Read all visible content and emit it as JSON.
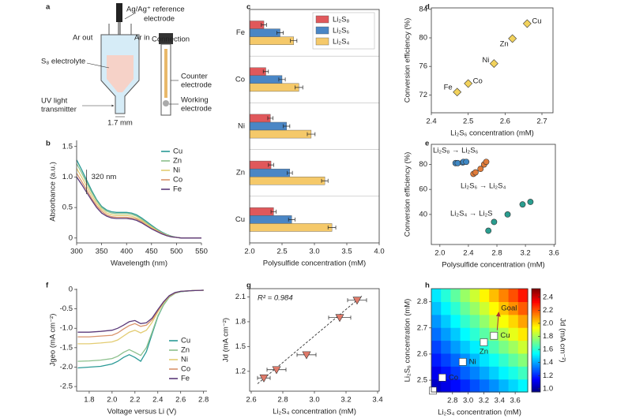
{
  "chart_data": [
    {
      "type": "diagram",
      "label": "a",
      "texts": [
        "Ag/Ag⁺ reference",
        "electrode",
        "Ar out",
        "Ar in",
        "Connection",
        "S₈ electrolyte",
        "Counter",
        "electrode",
        "UV light",
        "transmitter",
        "Working",
        "electrode",
        "1.7 mm"
      ]
    },
    {
      "type": "line",
      "label": "b",
      "xlabel": "Wavelength (nm)",
      "ylabel": "Absorbance (a.u.)",
      "x": [
        300,
        310,
        320,
        330,
        340,
        350,
        360,
        370,
        380,
        390,
        400,
        410,
        420,
        430,
        440,
        450,
        460,
        470,
        480,
        490,
        500,
        510,
        520,
        530,
        540,
        550
      ],
      "series": [
        {
          "name": "Cu",
          "color": "#2a9a96",
          "values": [
            1.28,
            1.12,
            0.95,
            0.78,
            0.63,
            0.52,
            0.46,
            0.43,
            0.42,
            0.42,
            0.42,
            0.41,
            0.38,
            0.33,
            0.27,
            0.21,
            0.15,
            0.1,
            0.06,
            0.03,
            0.01,
            0,
            0,
            0,
            0,
            0
          ]
        },
        {
          "name": "Zn",
          "color": "#8cc08c",
          "values": [
            1.22,
            1.07,
            0.91,
            0.75,
            0.61,
            0.5,
            0.44,
            0.41,
            0.4,
            0.4,
            0.4,
            0.39,
            0.36,
            0.31,
            0.25,
            0.19,
            0.14,
            0.09,
            0.05,
            0.03,
            0.01,
            0,
            0,
            0,
            0,
            0
          ]
        },
        {
          "name": "Ni",
          "color": "#e3cc72",
          "values": [
            1.14,
            1.0,
            0.85,
            0.7,
            0.57,
            0.47,
            0.41,
            0.38,
            0.37,
            0.37,
            0.37,
            0.36,
            0.33,
            0.29,
            0.23,
            0.18,
            0.13,
            0.08,
            0.05,
            0.02,
            0.01,
            0,
            0,
            0,
            0,
            0
          ]
        },
        {
          "name": "Co",
          "color": "#d9926a",
          "values": [
            1.06,
            0.93,
            0.79,
            0.65,
            0.53,
            0.44,
            0.38,
            0.35,
            0.34,
            0.34,
            0.34,
            0.33,
            0.31,
            0.27,
            0.21,
            0.16,
            0.12,
            0.08,
            0.04,
            0.02,
            0.01,
            0,
            0,
            0,
            0,
            0
          ]
        },
        {
          "name": "Fe",
          "color": "#5b3a7a",
          "values": [
            1.0,
            0.88,
            0.75,
            0.62,
            0.5,
            0.41,
            0.36,
            0.33,
            0.32,
            0.32,
            0.32,
            0.31,
            0.29,
            0.25,
            0.2,
            0.15,
            0.11,
            0.07,
            0.04,
            0.02,
            0.01,
            0,
            0,
            0,
            0,
            0
          ]
        }
      ],
      "xlim": [
        300,
        550
      ],
      "xticks": [
        300,
        350,
        400,
        450,
        500,
        550
      ],
      "ylim": [
        -0.08,
        1.6
      ],
      "yticks": [
        0,
        0.5,
        {
          "value": 1,
          "label": "1.0"
        },
        1.5
      ],
      "annotation": {
        "text": "320 nm",
        "x": 320
      },
      "legend": "right"
    },
    {
      "type": "hbar",
      "label": "c",
      "xlabel": "Polysulfide concentration (mM)",
      "frame": "box",
      "categories": [
        "Fe",
        "Co",
        "Ni",
        "Zn",
        "Cu"
      ],
      "series": [
        {
          "name": "Li₂S₈",
          "color": "#e0585b",
          "values": [
            2.22,
            2.25,
            2.32,
            2.33,
            2.37
          ],
          "errors": [
            0.04,
            0.04,
            0.04,
            0.04,
            0.04
          ]
        },
        {
          "name": "Li₂S₆",
          "color": "#4a86c5",
          "values": [
            2.47,
            2.5,
            2.57,
            2.62,
            2.65
          ],
          "errors": [
            0.05,
            0.05,
            0.05,
            0.04,
            0.05
          ]
        },
        {
          "name": "Li₂S₄",
          "color": "#f5c96a",
          "values": [
            2.68,
            2.76,
            2.95,
            3.16,
            3.27
          ],
          "errors": [
            0.05,
            0.06,
            0.06,
            0.05,
            0.06
          ]
        }
      ],
      "xlim": [
        2,
        4
      ],
      "xticks": [
        {
          "value": 2,
          "label": "2.0"
        },
        2.5,
        {
          "value": 3,
          "label": "3.0"
        },
        3.5,
        {
          "value": 4,
          "label": "4.0"
        }
      ],
      "legend": "upper right"
    },
    {
      "type": "scatter",
      "label": "d",
      "xlabel": "Li₂S₆ concentration (mM)",
      "ylabel": "Conversion efficiency (%)",
      "frame": "box",
      "series": [
        {
          "color": "#f2d25c",
          "marker": "diamond",
          "x": [
            2.47,
            2.5,
            2.57,
            2.62,
            2.66
          ],
          "values": [
            72.4,
            73.6,
            76.4,
            79.9,
            82.0
          ],
          "point_labels": [
            "Fe",
            "Co",
            "Ni",
            "Zn",
            "Cu"
          ]
        }
      ],
      "xlim": [
        2.4,
        2.73
      ],
      "xticks": [
        2.4,
        2.5,
        2.6,
        2.7
      ],
      "ylim": [
        69.5,
        84.2
      ],
      "yticks": [
        72,
        76,
        80,
        84
      ]
    },
    {
      "type": "scatter",
      "label": "e",
      "xlabel": "Polysulfide concentration (mM)",
      "ylabel": "Conversion efficiency (%)",
      "frame": "box",
      "series": [
        {
          "name": "Li₂S₈ → Li₂S₆",
          "color": "#3f88c5",
          "marker": "circle",
          "x": [
            2.22,
            2.25,
            2.32,
            2.33,
            2.37
          ],
          "values": [
            81,
            81,
            81.5,
            82,
            82
          ]
        },
        {
          "name": "Li₂S₆ → Li₂S₄",
          "color": "#e07b39",
          "marker": "circle",
          "x": [
            2.47,
            2.5,
            2.57,
            2.62,
            2.65
          ],
          "values": [
            72.4,
            73.6,
            76.4,
            79.9,
            82
          ]
        },
        {
          "name": "Li₂S₄ → Li₂S",
          "color": "#2a9d8f",
          "marker": "circle",
          "x": [
            2.68,
            2.76,
            2.95,
            3.16,
            3.27
          ],
          "values": [
            27,
            34,
            40,
            48,
            50
          ]
        }
      ],
      "xlim": [
        1.88,
        3.62
      ],
      "xticks": [
        {
          "value": 2,
          "label": "2.0"
        },
        2.4,
        2.8,
        3.2,
        3.6
      ],
      "ylim": [
        16,
        96
      ],
      "yticks": [
        40,
        60,
        80
      ]
    },
    {
      "type": "line",
      "label": "f",
      "xlabel": "Voltage versus Li (V)",
      "ylabel": "Jgeo (mA cm⁻²)",
      "x": [
        1.7,
        1.8,
        1.9,
        2.0,
        2.05,
        2.1,
        2.15,
        2.2,
        2.25,
        2.3,
        2.35,
        2.4,
        2.45,
        2.5,
        2.55,
        2.6,
        2.7,
        2.8
      ],
      "series": [
        {
          "name": "Cu",
          "color": "#2a9a96",
          "values": [
            -2.02,
            -2.0,
            -1.98,
            -1.92,
            -1.85,
            -1.75,
            -1.68,
            -1.75,
            -1.85,
            -1.6,
            -1.15,
            -0.7,
            -0.4,
            -0.2,
            -0.1,
            -0.06,
            -0.03,
            -0.02
          ]
        },
        {
          "name": "Zn",
          "color": "#8cc08c",
          "values": [
            -1.85,
            -1.84,
            -1.82,
            -1.78,
            -1.72,
            -1.62,
            -1.55,
            -1.62,
            -1.7,
            -1.5,
            -1.1,
            -0.68,
            -0.4,
            -0.2,
            -0.1,
            -0.06,
            -0.03,
            -0.02
          ]
        },
        {
          "name": "Ni",
          "color": "#e3cc72",
          "values": [
            -1.4,
            -1.4,
            -1.38,
            -1.35,
            -1.3,
            -1.2,
            -1.1,
            -1.05,
            -1.12,
            -1.05,
            -0.85,
            -0.58,
            -0.35,
            -0.18,
            -0.09,
            -0.05,
            -0.03,
            -0.02
          ]
        },
        {
          "name": "Co",
          "color": "#d9926a",
          "values": [
            -1.22,
            -1.22,
            -1.2,
            -1.18,
            -1.12,
            -1.02,
            -0.93,
            -0.88,
            -0.95,
            -0.92,
            -0.78,
            -0.55,
            -0.33,
            -0.17,
            -0.09,
            -0.05,
            -0.03,
            -0.02
          ]
        },
        {
          "name": "Fe",
          "color": "#5b3a7a",
          "values": [
            -1.1,
            -1.1,
            -1.08,
            -1.05,
            -1.0,
            -0.92,
            -0.83,
            -0.8,
            -0.88,
            -0.86,
            -0.74,
            -0.52,
            -0.32,
            -0.16,
            -0.08,
            -0.05,
            -0.03,
            -0.02
          ]
        }
      ],
      "xlim": [
        1.69,
        2.83
      ],
      "xticks": [
        1.8,
        {
          "value": 2,
          "label": "2.0"
        },
        2.2,
        2.4,
        2.6,
        2.8
      ],
      "ylim": [
        -2.62,
        0.02
      ],
      "yticks": [
        0,
        -0.5,
        {
          "value": -1,
          "label": "-1.0"
        },
        -1.5,
        {
          "value": -2,
          "label": "-2.0"
        },
        -2.5
      ],
      "legend": "lower right"
    },
    {
      "type": "scatter",
      "label": "g",
      "xlabel": "Li₂S₄ concentration (mM)",
      "ylabel": "Jd (mA cm⁻²)",
      "frame": "box",
      "series": [
        {
          "color": "#e07a6a",
          "marker": "triangle",
          "x": [
            2.68,
            2.76,
            2.95,
            3.16,
            3.27
          ],
          "values": [
            1.12,
            1.22,
            1.4,
            1.85,
            2.06
          ],
          "errors_x": [
            0.04,
            0.06,
            0.06,
            0.07,
            0.06
          ]
        }
      ],
      "fit": {
        "x": [
          2.64,
          3.3
        ],
        "y": [
          1.05,
          2.11
        ]
      },
      "annotation": {
        "text": "R² = 0.984"
      },
      "xlim": [
        2.59,
        3.41
      ],
      "xticks": [
        2.6,
        2.8,
        {
          "value": 3,
          "label": "3.0"
        },
        3.2,
        3.4
      ],
      "ylim": [
        0.96,
        2.2
      ],
      "yticks": [
        1.2,
        1.5,
        1.8,
        2.1
      ]
    },
    {
      "type": "heatmap",
      "label": "h",
      "xlabel": "Li₂S₄ concentration (mM)",
      "ylabel": "Li₂S₆ concentration (mM)",
      "zlabel": "Jd (mA cm⁻²)",
      "frame": "box",
      "z": [
        [
          1.06,
          1.11,
          1.16,
          1.21,
          1.27,
          1.32,
          1.37,
          1.43,
          1.48,
          1.53
        ],
        [
          1.12,
          1.18,
          1.24,
          1.3,
          1.35,
          1.41,
          1.47,
          1.53,
          1.58,
          1.64
        ],
        [
          1.19,
          1.25,
          1.31,
          1.37,
          1.44,
          1.5,
          1.56,
          1.62,
          1.69,
          1.75
        ],
        [
          1.25,
          1.32,
          1.39,
          1.46,
          1.52,
          1.59,
          1.66,
          1.73,
          1.79,
          1.86
        ],
        [
          1.32,
          1.39,
          1.46,
          1.54,
          1.61,
          1.68,
          1.75,
          1.82,
          1.9,
          1.97
        ],
        [
          1.38,
          1.46,
          1.54,
          1.62,
          1.69,
          1.77,
          1.85,
          1.93,
          2.0,
          2.08
        ],
        [
          1.45,
          1.53,
          1.61,
          1.7,
          1.78,
          1.86,
          1.94,
          2.03,
          2.11,
          2.19
        ],
        [
          1.51,
          1.6,
          1.69,
          1.78,
          1.86,
          1.95,
          2.04,
          2.13,
          2.21,
          2.3
        ]
      ],
      "zlim": [
        0.95,
        2.53
      ],
      "zticks": [
        {
          "value": 1,
          "label": "1.0"
        },
        1.2,
        1.4,
        1.6,
        1.8,
        {
          "value": 2,
          "label": "2.0"
        },
        2.2,
        2.4
      ],
      "series": [
        {
          "x": [
            2.55,
            2.67,
            2.93,
            3.2,
            3.33
          ],
          "values": [
            2.46,
            2.51,
            2.57,
            2.645,
            2.67
          ],
          "point_labels": [
            null,
            "Co",
            "Ni",
            "Zn",
            "Cu"
          ]
        }
      ],
      "annotation": {
        "text": "Goal",
        "x": 3.42,
        "y": 2.775
      },
      "xlim": [
        2.53,
        3.76
      ],
      "xticks": [
        2.8,
        {
          "value": 3,
          "label": "3.0"
        },
        3.2,
        3.4,
        3.6
      ],
      "ylim": [
        2.455,
        2.85
      ],
      "yticks": [
        2.5,
        2.6,
        2.7,
        2.8
      ]
    }
  ]
}
